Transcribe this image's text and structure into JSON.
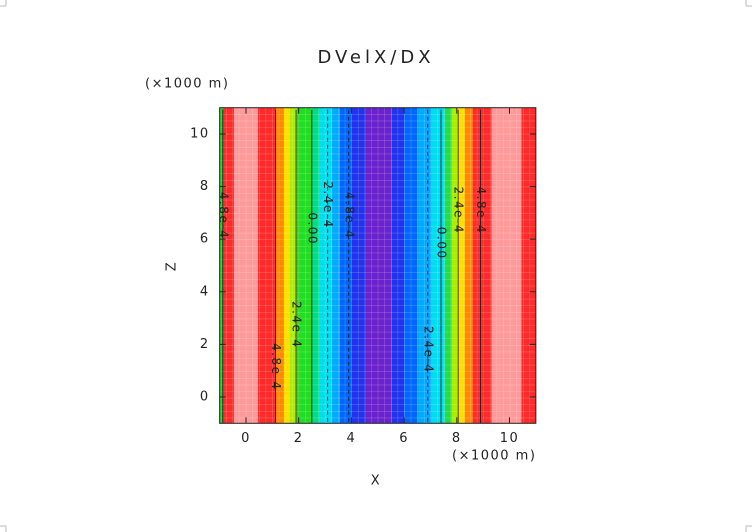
{
  "chart_data": {
    "type": "contour",
    "title": "DVelX/DX",
    "x_label": "X",
    "y_label": "Z",
    "x_unit": "(×1000 m)",
    "y_unit": "(×1000 m)",
    "xlim": [
      -1,
      11
    ],
    "ylim": [
      -1,
      11
    ],
    "xticks": [
      0,
      2,
      4,
      6,
      8,
      10
    ],
    "yticks": [
      0,
      2,
      4,
      6,
      8,
      10
    ],
    "bands": {
      "bins": [
        -1,
        -0.87,
        -0.45,
        0.45,
        1.14,
        1.44,
        1.67,
        1.93,
        2.5,
        2.8,
        3.26,
        3.56,
        4.0,
        4.55,
        5.53,
        6.0,
        6.52,
        7.05,
        7.54,
        7.8,
        8.03,
        8.3,
        8.6,
        9.32,
        10.45,
        11
      ],
      "colors": [
        "#33cc33",
        "#ff2a2a",
        "#ff9a9a",
        "#ff2a2a",
        "#ff8800",
        "#ffdd00",
        "#aaee00",
        "#22dd22",
        "#00dd88",
        "#00ddee",
        "#00aaff",
        "#0066ff",
        "#2233ee",
        "#6a22cc",
        "#2233ee",
        "#0066ff",
        "#00aaff",
        "#00ddee",
        "#22dd44",
        "#aaee00",
        "#ffdd00",
        "#ff8800",
        "#ff2a2a",
        "#ff9a9a",
        "#ff2a2a"
      ]
    },
    "contours": [
      {
        "x": -0.88,
        "label": "4.8e-4",
        "label_y": 6.9,
        "style": "solid"
      },
      {
        "x": 1.12,
        "label": "4.8e-4",
        "label_y": 1.15,
        "style": "solid"
      },
      {
        "x": 1.9,
        "label": "2.4e-4",
        "label_y": 2.75,
        "style": "solid"
      },
      {
        "x": 2.5,
        "label": "0.00",
        "label_y": 6.4,
        "style": "solid"
      },
      {
        "x": 3.1,
        "label": "2.4e-4",
        "label_y": 7.3,
        "style": "dashed"
      },
      {
        "x": 3.9,
        "label": "4.8e-4",
        "label_y": 6.9,
        "style": "dashed"
      },
      {
        "x": 6.9,
        "label": "2.4e-4",
        "label_y": 1.8,
        "style": "dashed"
      },
      {
        "x": 7.4,
        "label": "0.00",
        "label_y": 5.85,
        "style": "solid"
      },
      {
        "x": 8.05,
        "label": "2.4e-4",
        "label_y": 7.1,
        "style": "solid"
      },
      {
        "x": 8.9,
        "label": "4.8e-4",
        "label_y": 7.1,
        "style": "solid"
      }
    ]
  }
}
